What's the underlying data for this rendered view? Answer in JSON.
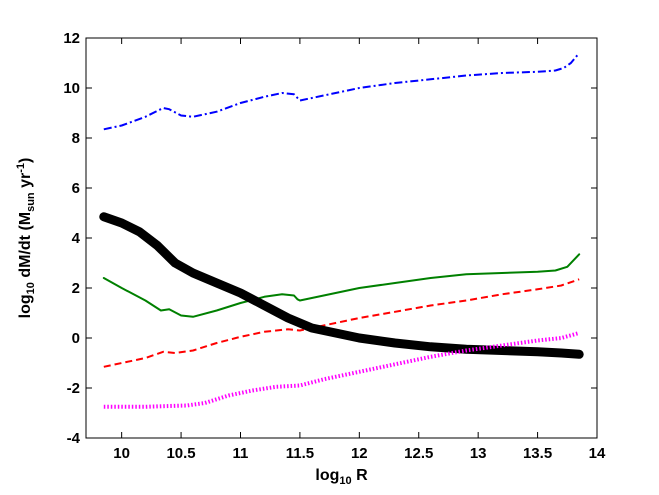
{
  "chart_data": {
    "type": "line",
    "title": "",
    "xlabel": {
      "base": "log",
      "subscript": "10",
      "rest": " R"
    },
    "ylabel": {
      "base": "log",
      "subscript": "10",
      "mid": " dM/dt (M",
      "subscript2": "sun",
      "mid2": " yr",
      "superscript": "-1",
      "end": ")"
    },
    "xlim": [
      9.7,
      14.0
    ],
    "ylim": [
      -4,
      12
    ],
    "xticks": [
      10,
      10.5,
      11,
      11.5,
      12,
      12.5,
      13,
      13.5,
      14
    ],
    "xtick_labels": [
      "10",
      "10.5",
      "11",
      "11.5",
      "12",
      "12.5",
      "13",
      "13.5",
      "14"
    ],
    "yticks": [
      -4,
      -2,
      0,
      2,
      4,
      6,
      8,
      10,
      12
    ],
    "ytick_labels": [
      "-4",
      "-2",
      "0",
      "2",
      "4",
      "6",
      "8",
      "10",
      "12"
    ],
    "grid": false,
    "series": [
      {
        "color": "#0000ff",
        "style": "dashdot",
        "width": 2,
        "points": [
          [
            9.85,
            8.35
          ],
          [
            10.0,
            8.5
          ],
          [
            10.2,
            8.85
          ],
          [
            10.35,
            9.2
          ],
          [
            10.4,
            9.15
          ],
          [
            10.5,
            8.9
          ],
          [
            10.6,
            8.85
          ],
          [
            10.8,
            9.05
          ],
          [
            11.0,
            9.4
          ],
          [
            11.2,
            9.65
          ],
          [
            11.35,
            9.8
          ],
          [
            11.45,
            9.75
          ],
          [
            11.48,
            9.6
          ],
          [
            11.5,
            9.5
          ],
          [
            11.7,
            9.7
          ],
          [
            12.0,
            10.0
          ],
          [
            12.3,
            10.2
          ],
          [
            12.6,
            10.35
          ],
          [
            12.9,
            10.5
          ],
          [
            13.2,
            10.6
          ],
          [
            13.5,
            10.65
          ],
          [
            13.65,
            10.7
          ],
          [
            13.72,
            10.8
          ],
          [
            13.78,
            11.0
          ],
          [
            13.85,
            11.4
          ]
        ]
      },
      {
        "color": "#008000",
        "style": "solid",
        "width": 2,
        "points": [
          [
            9.85,
            2.4
          ],
          [
            10.0,
            2.0
          ],
          [
            10.2,
            1.5
          ],
          [
            10.33,
            1.1
          ],
          [
            10.4,
            1.15
          ],
          [
            10.5,
            0.9
          ],
          [
            10.6,
            0.85
          ],
          [
            10.8,
            1.1
          ],
          [
            11.0,
            1.4
          ],
          [
            11.2,
            1.65
          ],
          [
            11.35,
            1.75
          ],
          [
            11.45,
            1.7
          ],
          [
            11.48,
            1.55
          ],
          [
            11.5,
            1.5
          ],
          [
            11.7,
            1.7
          ],
          [
            12.0,
            2.0
          ],
          [
            12.3,
            2.2
          ],
          [
            12.6,
            2.4
          ],
          [
            12.9,
            2.55
          ],
          [
            13.2,
            2.6
          ],
          [
            13.5,
            2.65
          ],
          [
            13.65,
            2.7
          ],
          [
            13.75,
            2.85
          ],
          [
            13.85,
            3.35
          ]
        ]
      },
      {
        "color": "#ff0000",
        "style": "dashed",
        "width": 2,
        "points": [
          [
            9.85,
            -1.15
          ],
          [
            10.0,
            -1.0
          ],
          [
            10.2,
            -0.8
          ],
          [
            10.35,
            -0.55
          ],
          [
            10.45,
            -0.6
          ],
          [
            10.6,
            -0.5
          ],
          [
            10.8,
            -0.2
          ],
          [
            11.0,
            0.05
          ],
          [
            11.2,
            0.25
          ],
          [
            11.4,
            0.35
          ],
          [
            11.5,
            0.3
          ],
          [
            11.7,
            0.5
          ],
          [
            12.0,
            0.8
          ],
          [
            12.3,
            1.05
          ],
          [
            12.6,
            1.3
          ],
          [
            12.9,
            1.5
          ],
          [
            13.2,
            1.75
          ],
          [
            13.5,
            1.95
          ],
          [
            13.7,
            2.1
          ],
          [
            13.85,
            2.35
          ]
        ]
      },
      {
        "color": "#000000",
        "style": "solid",
        "width": 9,
        "points": [
          [
            9.85,
            4.85
          ],
          [
            10.0,
            4.6
          ],
          [
            10.15,
            4.25
          ],
          [
            10.3,
            3.7
          ],
          [
            10.45,
            3.0
          ],
          [
            10.6,
            2.6
          ],
          [
            10.8,
            2.2
          ],
          [
            11.0,
            1.8
          ],
          [
            11.2,
            1.3
          ],
          [
            11.4,
            0.8
          ],
          [
            11.6,
            0.4
          ],
          [
            11.8,
            0.2
          ],
          [
            12.0,
            0.0
          ],
          [
            12.3,
            -0.2
          ],
          [
            12.6,
            -0.35
          ],
          [
            12.9,
            -0.45
          ],
          [
            13.2,
            -0.5
          ],
          [
            13.5,
            -0.55
          ],
          [
            13.7,
            -0.6
          ],
          [
            13.85,
            -0.65
          ]
        ]
      },
      {
        "color": "#ff00ff",
        "style": "dotted",
        "width": 4,
        "points": [
          [
            9.85,
            -2.75
          ],
          [
            10.0,
            -2.75
          ],
          [
            10.2,
            -2.75
          ],
          [
            10.4,
            -2.72
          ],
          [
            10.55,
            -2.7
          ],
          [
            10.7,
            -2.6
          ],
          [
            10.9,
            -2.3
          ],
          [
            11.1,
            -2.1
          ],
          [
            11.3,
            -1.95
          ],
          [
            11.5,
            -1.9
          ],
          [
            11.7,
            -1.65
          ],
          [
            12.0,
            -1.35
          ],
          [
            12.3,
            -1.05
          ],
          [
            12.6,
            -0.75
          ],
          [
            12.9,
            -0.5
          ],
          [
            13.2,
            -0.3
          ],
          [
            13.5,
            -0.1
          ],
          [
            13.7,
            0.0
          ],
          [
            13.85,
            0.2
          ]
        ]
      }
    ]
  }
}
